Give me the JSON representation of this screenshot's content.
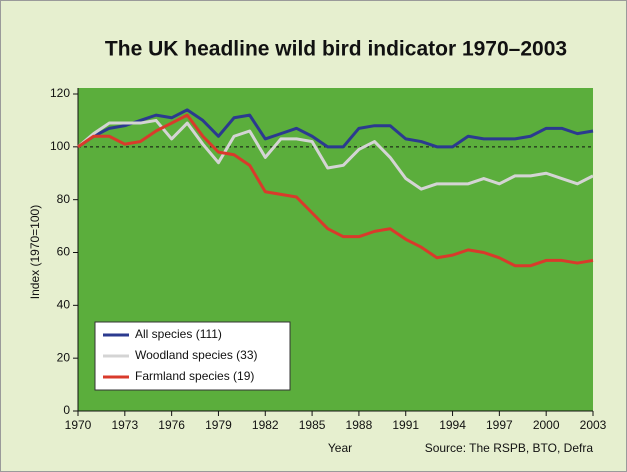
{
  "chart_data": {
    "type": "line",
    "title": "The UK headline wild bird indicator 1970–2003",
    "y_label": "Index (1970=100)",
    "x_label": "Year",
    "source": "Source: The RSPB, BTO, Defra",
    "x": [
      1970,
      1971,
      1972,
      1973,
      1974,
      1975,
      1976,
      1977,
      1978,
      1979,
      1980,
      1981,
      1982,
      1983,
      1984,
      1985,
      1986,
      1987,
      1988,
      1989,
      1990,
      1991,
      1992,
      1993,
      1994,
      1995,
      1996,
      1997,
      1998,
      1999,
      2000,
      2001,
      2002,
      2003
    ],
    "series": [
      {
        "name": "All species (111)",
        "color": "#2b3a8f",
        "values": [
          100,
          104,
          107,
          108,
          110,
          112,
          111,
          114,
          110,
          104,
          111,
          112,
          103,
          105,
          107,
          104,
          100,
          100,
          107,
          108,
          108,
          103,
          102,
          100,
          100,
          104,
          103,
          103,
          103,
          104,
          107,
          107,
          105,
          106
        ]
      },
      {
        "name": "Woodland species (33)",
        "color": "#d4d4d4",
        "values": [
          100,
          105,
          109,
          109,
          109,
          110,
          103,
          109,
          101,
          94,
          104,
          106,
          96,
          103,
          103,
          102,
          92,
          93,
          99,
          102,
          96,
          88,
          84,
          86,
          86,
          86,
          88,
          86,
          89,
          89,
          90,
          88,
          86,
          89
        ]
      },
      {
        "name": "Farmland species (19)",
        "color": "#d93a2b",
        "values": [
          100,
          104,
          104,
          101,
          102,
          106,
          109,
          112,
          104,
          98,
          97,
          93,
          83,
          82,
          81,
          75,
          69,
          66,
          66,
          68,
          69,
          65,
          62,
          58,
          59,
          61,
          60,
          58,
          55,
          55,
          57,
          57,
          56,
          57
        ]
      }
    ],
    "reference_line": 100,
    "xlim": [
      1970,
      2003
    ],
    "xticks": [
      1970,
      1973,
      1976,
      1979,
      1982,
      1985,
      1988,
      1991,
      1994,
      1997,
      2000,
      2003
    ],
    "ylim": [
      0,
      120
    ],
    "yticks": [
      0,
      20,
      40,
      60,
      80,
      100,
      120
    ],
    "legend": "lower left"
  }
}
